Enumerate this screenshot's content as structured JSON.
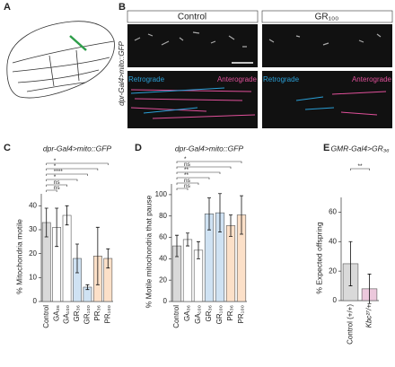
{
  "panels": {
    "a": "A",
    "b": "B"
  },
  "panel_b": {
    "genotype": "dpr-Gal4>mito::GFP",
    "conditions": [
      "Control",
      "GR₁₀₀"
    ],
    "directions": {
      "retrograde": "Retrograde",
      "anterograde": "Anterograde"
    }
  },
  "chart_data": [
    {
      "type": "bar",
      "panel": "C",
      "title": "dpr-Gal4>mito::GFP",
      "ylabel": "% Mitochondria motile",
      "categories": [
        "Control",
        "GA₃₆",
        "GA₁₀₀",
        "GR₃₆",
        "GR₁₀₀",
        "PR₃₆",
        "PR₁₀₀"
      ],
      "values": [
        33,
        31,
        36,
        18,
        6,
        19,
        18
      ],
      "errors": [
        6,
        8,
        4,
        6,
        1,
        12,
        4
      ],
      "colors": [
        "#d9d9d9",
        "#ffffff",
        "#ffffff",
        "#cfe2f3",
        "#cfe2f3",
        "#fce0c8",
        "#fce0c8"
      ],
      "ylim": [
        0,
        45
      ],
      "yticks": [
        0,
        10,
        20,
        30,
        40
      ],
      "significance": [
        "ns",
        "ns",
        "*",
        "****",
        "*",
        "*"
      ]
    },
    {
      "type": "bar",
      "panel": "D",
      "title": "dpr-Gal4>mito::GFP",
      "ylabel": "% Motile mitochondria that pause",
      "categories": [
        "Control",
        "GA₃₆",
        "GA₁₀₀",
        "GR₃₆",
        "GR₁₀₀",
        "PR₃₆",
        "PR₁₀₀"
      ],
      "values": [
        52,
        58,
        48,
        82,
        83,
        71,
        81
      ],
      "errors": [
        10,
        6,
        8,
        15,
        18,
        10,
        18
      ],
      "colors": [
        "#d9d9d9",
        "#ffffff",
        "#ffffff",
        "#cfe2f3",
        "#cfe2f3",
        "#fce0c8",
        "#fce0c8"
      ],
      "ylim": [
        0,
        110
      ],
      "yticks": [
        0,
        20,
        40,
        60,
        80,
        100
      ],
      "significance": [
        "ns",
        "ns",
        "**",
        "**",
        "ns",
        "*"
      ]
    },
    {
      "type": "bar",
      "panel": "E",
      "title": "GMR-Gal4>GR₃₆",
      "ylabel": "% Expected offspring",
      "categories": [
        "Control (+/+)",
        "Kbc²⁷/+"
      ],
      "values": [
        25,
        8
      ],
      "errors": [
        15,
        10
      ],
      "colors": [
        "#d9d9d9",
        "#ecc8dc"
      ],
      "ylim": [
        0,
        70
      ],
      "yticks": [
        0,
        20,
        40,
        60
      ],
      "significance": [
        "**"
      ]
    }
  ]
}
